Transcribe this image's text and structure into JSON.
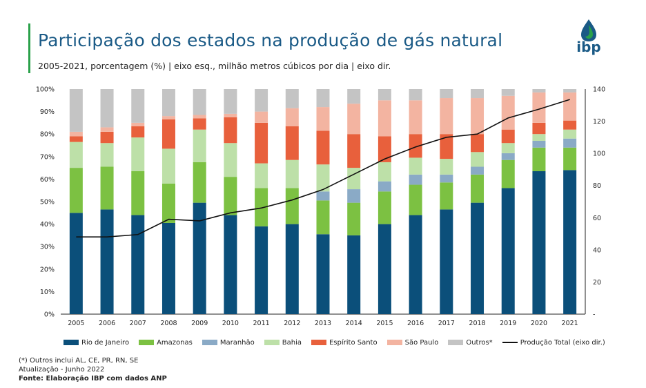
{
  "header": {
    "title": "Participação dos estados na produção de gás natural",
    "subtitle": "2005-2021, porcentagem (%) | eixo esq., milhão metros cúbicos por dia | eixo dir.",
    "logo_text": "ibp"
  },
  "colors": {
    "accent": "#2aa14a",
    "title": "#1a5a86"
  },
  "footnotes": {
    "line1": "(*) Outros inclui AL, CE, PR, RN, SE",
    "line2": "Atualização - Junho 2022",
    "line3": "Fonte: Elaboração IBP com dados ANP"
  },
  "chart_data": {
    "type": "bar",
    "stacked": true,
    "categories": [
      "2005",
      "2006",
      "2007",
      "2008",
      "2009",
      "2010",
      "2011",
      "2012",
      "2013",
      "2014",
      "2015",
      "2016",
      "2017",
      "2018",
      "2019",
      "2020",
      "2021"
    ],
    "y_left": {
      "min": 0,
      "max": 100,
      "ticks": [
        "0%",
        "10%",
        "20%",
        "30%",
        "40%",
        "50%",
        "60%",
        "70%",
        "80%",
        "90%",
        "100%"
      ]
    },
    "y_right": {
      "min": 0,
      "max": 140,
      "ticks": [
        "-",
        "20",
        "40",
        "60",
        "80",
        "100",
        "120",
        "140"
      ]
    },
    "grid": false,
    "legend_position": "bottom",
    "series": [
      {
        "name": "Rio de Janeiro",
        "color": "#0b4f7a",
        "values": [
          45,
          46.5,
          44,
          40.5,
          49.5,
          44,
          39,
          40,
          35.5,
          35,
          40,
          44,
          46.5,
          49.5,
          56,
          63.5,
          64
        ]
      },
      {
        "name": "Amazonas",
        "color": "#7cc142",
        "values": [
          20,
          19,
          19.5,
          17.5,
          18,
          17,
          17,
          16,
          15,
          14.5,
          14.5,
          13.5,
          12,
          12.5,
          12.5,
          10.5,
          10
        ]
      },
      {
        "name": "Maranhão",
        "color": "#8aaac6",
        "values": [
          0,
          0,
          0,
          0,
          0,
          0,
          0,
          0,
          4,
          6,
          4.5,
          4.5,
          3.5,
          3.5,
          3,
          3,
          4
        ]
      },
      {
        "name": "Bahia",
        "color": "#bde0a8",
        "values": [
          11.5,
          10.5,
          15,
          15.5,
          14.5,
          15,
          11,
          12.5,
          12,
          9.5,
          8.5,
          7.5,
          7,
          6.5,
          4.5,
          3,
          4
        ]
      },
      {
        "name": "Espírito Santo",
        "color": "#e8603c",
        "values": [
          2.5,
          5,
          5,
          13,
          5,
          11.5,
          18,
          15,
          15,
          15,
          11.5,
          10.5,
          11,
          8,
          6,
          5,
          4
        ]
      },
      {
        "name": "São Paulo",
        "color": "#f3b4a1",
        "values": [
          2,
          2,
          1.5,
          1.5,
          1.5,
          1.5,
          5,
          8,
          10.5,
          13.5,
          16,
          15,
          16,
          16,
          15,
          13.5,
          12.5
        ]
      },
      {
        "name": "Outros*",
        "color": "#c4c4c4",
        "values": [
          19,
          17,
          15,
          12,
          11.5,
          11,
          10,
          8.5,
          8,
          6.5,
          5,
          5,
          4,
          4,
          3,
          1.5,
          1.5
        ]
      }
    ],
    "line": {
      "name": "Produção Total (eixo dir.)",
      "axis": "right",
      "color": "#111111",
      "values": [
        48,
        48,
        49.5,
        59,
        58,
        63,
        66,
        71,
        77.5,
        87,
        96.5,
        104,
        110,
        112,
        122,
        127.5,
        133.5
      ]
    }
  }
}
